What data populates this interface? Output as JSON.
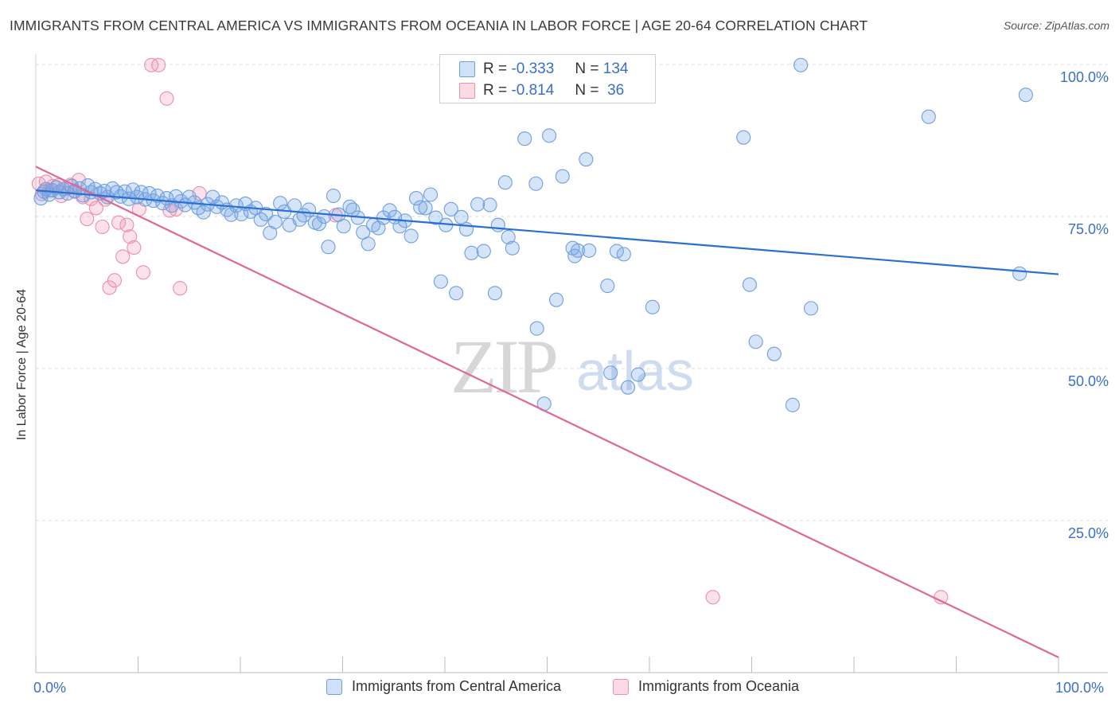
{
  "title": "IMMIGRANTS FROM CENTRAL AMERICA VS IMMIGRANTS FROM OCEANIA IN LABOR FORCE | AGE 20-64 CORRELATION CHART",
  "source": "Source: ZipAtlas.com",
  "watermark": {
    "zip": "ZIP",
    "atlas": "atlas"
  },
  "colors": {
    "blue_fill": "rgba(120,165,230,0.30)",
    "blue_stroke": "#6f9fe0",
    "blue_line": "#2b6fd1",
    "pink_fill": "rgba(240,150,180,0.28)",
    "pink_stroke": "#ea8fae",
    "pink_line": "#e06894",
    "axis_text": "#3a6fc9",
    "grid": "#dcdcdc"
  },
  "legend": {
    "rows": [
      {
        "r_label": "R =",
        "r_value": "-0.333",
        "n_label": "N =",
        "n_value": "134"
      },
      {
        "r_label": "R =",
        "r_value": "-0.814",
        "n_label": "N =",
        "n_value": "36"
      }
    ]
  },
  "chart_data": {
    "type": "scatter",
    "title": "IMMIGRANTS FROM CENTRAL AMERICA VS IMMIGRANTS FROM OCEANIA IN LABOR FORCE | AGE 20-64 CORRELATION CHART",
    "xlabel": "",
    "ylabel": "In Labor Force | Age 20-64",
    "xlim": [
      0,
      100
    ],
    "ylim": [
      0,
      100
    ],
    "x_tick_labels": [
      "0.0%",
      "100.0%"
    ],
    "y_ticks": [
      25,
      50,
      75,
      100
    ],
    "y_tick_labels": [
      "25.0%",
      "50.0%",
      "75.0%",
      "100.0%"
    ],
    "grid": true,
    "legend_placement": "top-center",
    "series": [
      {
        "name": "Immigrants from Central America",
        "trend": {
          "x": [
            0,
            100
          ],
          "y": [
            79.3,
            65.5
          ]
        },
        "points": [
          [
            0.5,
            78.0
          ],
          [
            0.8,
            79.1
          ],
          [
            1.0,
            79.5
          ],
          [
            1.3,
            78.6
          ],
          [
            1.6,
            79.3
          ],
          [
            2.0,
            79.8
          ],
          [
            2.3,
            79.0
          ],
          [
            2.7,
            79.5
          ],
          [
            3.1,
            78.8
          ],
          [
            3.5,
            80.0
          ],
          [
            3.8,
            79.2
          ],
          [
            4.3,
            79.6
          ],
          [
            4.6,
            78.5
          ],
          [
            5.1,
            80.1
          ],
          [
            5.4,
            79.0
          ],
          [
            5.8,
            79.5
          ],
          [
            6.3,
            78.8
          ],
          [
            6.7,
            79.2
          ],
          [
            7.0,
            78.2
          ],
          [
            7.5,
            79.6
          ],
          [
            7.9,
            79.0
          ],
          [
            8.3,
            78.3
          ],
          [
            8.7,
            79.1
          ],
          [
            9.1,
            77.9
          ],
          [
            9.5,
            79.4
          ],
          [
            9.9,
            78.2
          ],
          [
            10.3,
            79.0
          ],
          [
            10.7,
            77.8
          ],
          [
            11.1,
            78.8
          ],
          [
            11.5,
            77.6
          ],
          [
            11.9,
            78.4
          ],
          [
            12.4,
            77.2
          ],
          [
            12.8,
            78.0
          ],
          [
            13.3,
            76.8
          ],
          [
            13.7,
            78.3
          ],
          [
            14.2,
            77.5
          ],
          [
            14.6,
            76.9
          ],
          [
            15.0,
            78.2
          ],
          [
            15.5,
            77.3
          ],
          [
            15.9,
            76.4
          ],
          [
            16.4,
            75.7
          ],
          [
            16.8,
            77.0
          ],
          [
            17.3,
            78.2
          ],
          [
            17.7,
            76.6
          ],
          [
            18.2,
            77.3
          ],
          [
            18.7,
            76.1
          ],
          [
            19.1,
            75.3
          ],
          [
            19.6,
            76.8
          ],
          [
            20.1,
            75.4
          ],
          [
            20.5,
            77.1
          ],
          [
            21.0,
            75.8
          ],
          [
            21.5,
            76.4
          ],
          [
            22.0,
            74.5
          ],
          [
            22.5,
            75.4
          ],
          [
            22.9,
            72.3
          ],
          [
            23.4,
            74.1
          ],
          [
            23.9,
            77.2
          ],
          [
            24.3,
            75.8
          ],
          [
            24.8,
            73.6
          ],
          [
            25.3,
            76.8
          ],
          [
            25.8,
            74.5
          ],
          [
            26.2,
            75.2
          ],
          [
            26.7,
            76.1
          ],
          [
            27.3,
            74.0
          ],
          [
            27.7,
            73.8
          ],
          [
            28.2,
            75.0
          ],
          [
            28.6,
            70.0
          ],
          [
            29.1,
            78.4
          ],
          [
            29.6,
            75.3
          ],
          [
            30.1,
            73.4
          ],
          [
            30.7,
            76.6
          ],
          [
            31.0,
            76.1
          ],
          [
            31.5,
            74.8
          ],
          [
            32.0,
            72.4
          ],
          [
            32.5,
            70.5
          ],
          [
            33.0,
            73.6
          ],
          [
            33.5,
            73.1
          ],
          [
            34.0,
            74.8
          ],
          [
            34.6,
            76.0
          ],
          [
            35.1,
            74.9
          ],
          [
            35.6,
            73.4
          ],
          [
            36.1,
            74.3
          ],
          [
            36.7,
            71.8
          ],
          [
            37.2,
            78.0
          ],
          [
            37.6,
            76.5
          ],
          [
            38.1,
            76.4
          ],
          [
            38.6,
            78.6
          ],
          [
            39.1,
            74.8
          ],
          [
            39.6,
            64.3
          ],
          [
            40.1,
            73.6
          ],
          [
            40.6,
            76.2
          ],
          [
            41.1,
            62.4
          ],
          [
            41.6,
            74.9
          ],
          [
            42.1,
            72.9
          ],
          [
            42.6,
            69.0
          ],
          [
            43.2,
            77.0
          ],
          [
            43.8,
            69.3
          ],
          [
            44.4,
            76.9
          ],
          [
            44.9,
            62.4
          ],
          [
            45.2,
            73.6
          ],
          [
            45.9,
            80.6
          ],
          [
            46.2,
            71.6
          ],
          [
            46.6,
            69.8
          ],
          [
            47.8,
            87.8
          ],
          [
            48.9,
            80.4
          ],
          [
            49.0,
            56.6
          ],
          [
            49.7,
            44.2
          ],
          [
            50.2,
            88.3
          ],
          [
            50.9,
            61.3
          ],
          [
            51.5,
            81.6
          ],
          [
            52.5,
            69.8
          ],
          [
            52.7,
            68.5
          ],
          [
            53.0,
            69.4
          ],
          [
            53.8,
            84.4
          ],
          [
            54.1,
            69.4
          ],
          [
            55.9,
            63.6
          ],
          [
            56.2,
            49.3
          ],
          [
            56.8,
            69.3
          ],
          [
            57.5,
            68.8
          ],
          [
            57.9,
            46.9
          ],
          [
            58.9,
            49.0
          ],
          [
            60.3,
            60.1
          ],
          [
            69.2,
            88.0
          ],
          [
            69.8,
            63.8
          ],
          [
            70.4,
            54.4
          ],
          [
            72.2,
            52.4
          ],
          [
            74.0,
            44.0
          ],
          [
            74.8,
            99.9
          ],
          [
            75.8,
            59.9
          ],
          [
            87.3,
            91.4
          ],
          [
            96.8,
            95.0
          ],
          [
            96.2,
            65.6
          ],
          [
            47.0,
            99.9
          ],
          [
            48.0,
            99.9
          ]
        ]
      },
      {
        "name": "Immigrants from Oceania",
        "trend": {
          "x": [
            0,
            100
          ],
          "y": [
            83.2,
            2.5
          ]
        },
        "points": [
          [
            0.3,
            80.4
          ],
          [
            0.6,
            78.7
          ],
          [
            1.0,
            80.7
          ],
          [
            1.3,
            79.3
          ],
          [
            1.7,
            80.0
          ],
          [
            2.2,
            80.1
          ],
          [
            2.5,
            78.4
          ],
          [
            3.0,
            79.6
          ],
          [
            3.4,
            80.2
          ],
          [
            3.8,
            79.1
          ],
          [
            4.2,
            81.0
          ],
          [
            4.6,
            78.2
          ],
          [
            5.0,
            74.6
          ],
          [
            5.4,
            77.9
          ],
          [
            5.9,
            76.4
          ],
          [
            6.5,
            73.3
          ],
          [
            6.8,
            77.8
          ],
          [
            7.2,
            63.3
          ],
          [
            7.7,
            64.5
          ],
          [
            8.1,
            74.0
          ],
          [
            8.5,
            68.4
          ],
          [
            8.9,
            73.6
          ],
          [
            9.2,
            71.7
          ],
          [
            9.6,
            69.9
          ],
          [
            10.1,
            76.2
          ],
          [
            10.5,
            65.8
          ],
          [
            11.3,
            99.9
          ],
          [
            12.0,
            99.9
          ],
          [
            12.8,
            94.4
          ],
          [
            13.1,
            76.0
          ],
          [
            13.7,
            76.2
          ],
          [
            14.1,
            63.2
          ],
          [
            16.0,
            78.8
          ],
          [
            29.3,
            75.2
          ],
          [
            66.2,
            12.4
          ],
          [
            88.5,
            12.4
          ]
        ]
      }
    ]
  },
  "bottom_legend": {
    "items": [
      "Immigrants from Central America",
      "Immigrants from Oceania"
    ]
  }
}
